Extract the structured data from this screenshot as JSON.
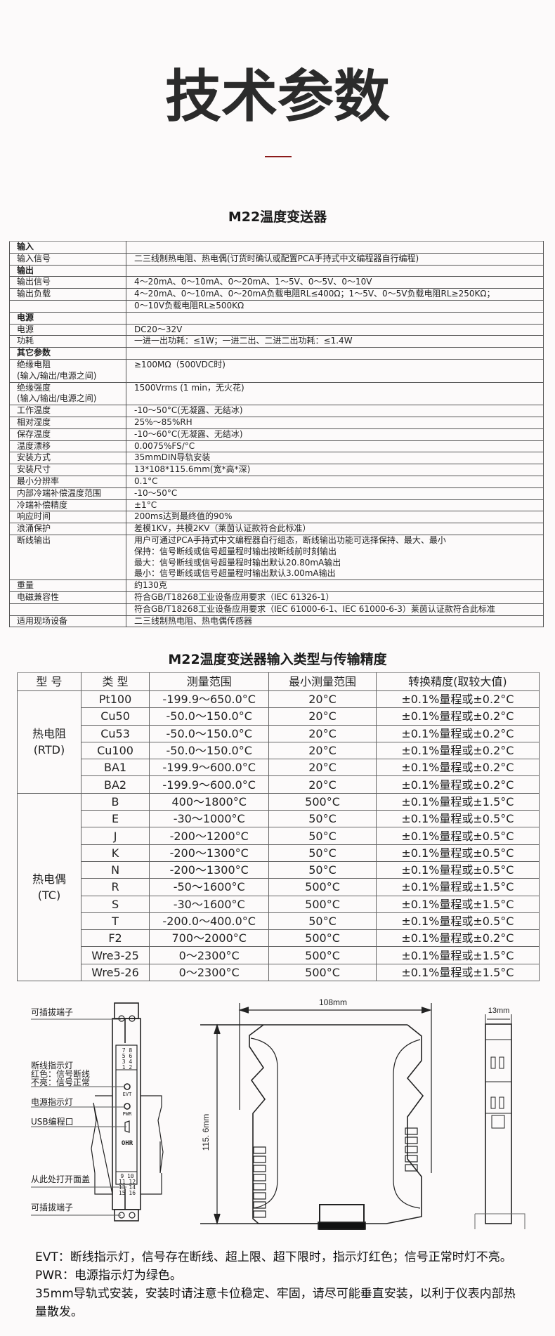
{
  "header": {
    "title": "技术参数",
    "accent_color": "#8b1a1a"
  },
  "spec": {
    "title": "M22温度变送器",
    "rows": [
      {
        "k": "输入",
        "v": [
          ""
        ],
        "section": true
      },
      {
        "k": "输入信号",
        "v": [
          "二三线制热电阻、热电偶(订货时确认或配置PCA手持式中文编程器自行编程)"
        ]
      },
      {
        "k": "输出",
        "v": [
          ""
        ],
        "section": true
      },
      {
        "k": "输出信号",
        "v": [
          "4～20mA、0～10mA、0～20mA、1～5V、0～5V、0～10V"
        ]
      },
      {
        "k": "输出负载",
        "v": [
          "4～20mA、0～10mA、0～20mA负载电阻RL≤400Ω；1～5V、0～5V负载电阻RL≥250KΩ；"
        ]
      },
      {
        "k": "",
        "v": [
          "0～10V负载电阻RL≥500KΩ"
        ]
      },
      {
        "k": "电源",
        "v": [
          ""
        ],
        "section": true
      },
      {
        "k": "电源",
        "v": [
          "DC20～32V"
        ]
      },
      {
        "k": "功耗",
        "v": [
          "一进一出功耗：≤1W；一进二出、二进二出功耗：≤1.4W"
        ]
      },
      {
        "k": "其它参数",
        "v": [
          ""
        ],
        "section": true
      },
      {
        "k": "绝缘电阻",
        "k2": "(输入/输出/电源之间)",
        "v": [
          "≥100MΩ（500VDC时)"
        ]
      },
      {
        "k": "绝缘强度",
        "k2": "(输入/输出/电源之间)",
        "v": [
          "1500Vrms (1 min，无火花)"
        ]
      },
      {
        "k": "工作温度",
        "v": [
          "-10～50°C(无凝露、无结冰)"
        ]
      },
      {
        "k": "相对湿度",
        "v": [
          "25%～85%RH"
        ]
      },
      {
        "k": "保存温度",
        "v": [
          "-10～60°C(无凝露、无结冰)"
        ]
      },
      {
        "k": "温度漂移",
        "v": [
          "0.0075%FS/°C"
        ]
      },
      {
        "k": "安装方式",
        "v": [
          "35mmDIN导轨安装"
        ]
      },
      {
        "k": "安装尺寸",
        "v": [
          "13*108*115.6mm(宽*高*深)"
        ]
      },
      {
        "k": "最小分辨率",
        "v": [
          "0.1°C"
        ]
      },
      {
        "k": "内部冷端补偿温度范围",
        "v": [
          "-10～50°C"
        ]
      },
      {
        "k": "冷端补偿精度",
        "v": [
          "±1°C"
        ]
      },
      {
        "k": "响应时间",
        "v": [
          "200ms达到最终值的90%"
        ]
      },
      {
        "k": "浪涌保护",
        "v": [
          "差模1KV，共模2KV（莱茵认证款符合此标准）"
        ]
      },
      {
        "k": "断线输出",
        "v": [
          "用户可通过PCA手持式中文编程器自行组态，断线输出功能可选择保持、最大、最小",
          "保持：信号断线或信号超量程时输出按断线前时刻输出",
          "最大：信号断线或信号超量程时输出默认20.80mA输出",
          "最小：信号断线或信号超量程时输出默认3.00mA输出"
        ]
      },
      {
        "k": "重量",
        "v": [
          "约130克"
        ]
      },
      {
        "k": "电磁兼容性",
        "v": [
          "符合GB/T18268工业设备应用要求（IEC 61326-1）"
        ]
      },
      {
        "k": "",
        "v": [
          "符合GB/T18268工业设备应用要求（IEC 61000-6-1、IEC 61000-6-3）莱茵认证款符合此标准"
        ]
      },
      {
        "k": "适用现场设备",
        "v": [
          "二三线制热电阻、热电偶传感器"
        ]
      }
    ]
  },
  "range_table": {
    "title": "M22温度变送器输入类型与传输精度",
    "headers": [
      "型 号",
      "类 型",
      "测量范围",
      "最小测量范围",
      "转换精度(取较大值)"
    ],
    "groups": [
      {
        "name": "热电阻",
        "sub": "(RTD)",
        "rows": [
          [
            "Pt100",
            "-199.9～650.0°C",
            "20°C",
            "±0.1%量程或±0.2°C"
          ],
          [
            "Cu50",
            "-50.0～150.0°C",
            "20°C",
            "±0.1%量程或±0.2°C"
          ],
          [
            "Cu53",
            "-50.0～150.0°C",
            "20°C",
            "±0.1%量程或±0.2°C"
          ],
          [
            "Cu100",
            "-50.0～150.0°C",
            "20°C",
            "±0.1%量程或±0.2°C"
          ],
          [
            "BA1",
            "-199.9～600.0°C",
            "20°C",
            "±0.1%量程或±0.2°C"
          ],
          [
            "BA2",
            "-199.9～600.0°C",
            "20°C",
            "±0.1%量程或±0.2°C"
          ]
        ]
      },
      {
        "name": "热电偶",
        "sub": "(TC)",
        "rows": [
          [
            "B",
            "400～1800°C",
            "500°C",
            "±0.1%量程或±1.5°C"
          ],
          [
            "E",
            "-30～1000°C",
            "50°C",
            "±0.1%量程或±0.5°C"
          ],
          [
            "J",
            "-200～1200°C",
            "50°C",
            "±0.1%量程或±0.5°C"
          ],
          [
            "K",
            "-200～1300°C",
            "50°C",
            "±0.1%量程或±0.5°C"
          ],
          [
            "N",
            "-200～1300°C",
            "50°C",
            "±0.1%量程或±0.5°C"
          ],
          [
            "R",
            "-50～1600°C",
            "500°C",
            "±0.1%量程或±1.5°C"
          ],
          [
            "S",
            "-30～1600°C",
            "500°C",
            "±0.1%量程或±1.5°C"
          ],
          [
            "T",
            "-200.0～400.0°C",
            "50°C",
            "±0.1%量程或±0.5°C"
          ],
          [
            "F2",
            "700～2000°C",
            "500°C",
            "±0.1%量程或±0.2°C"
          ],
          [
            "Wre3-25",
            "0～2300°C",
            "500°C",
            "±0.1%量程或±1.5°C"
          ],
          [
            "Wre5-26",
            "0～2300°C",
            "500°C",
            "±0.1%量程或±1.5°C"
          ]
        ]
      }
    ]
  },
  "diagram": {
    "labels": {
      "terminal_top": "可插拔端子",
      "evt_1": "断线指示灯",
      "evt_2": "红色：信号断线",
      "evt_3": "不亮：信号正常",
      "pwr": "电源指示灯",
      "usb": "USB编程口",
      "cover": "从此处打开面盖",
      "terminal_bottom": "可插拔端子"
    },
    "device": {
      "pins_top": [
        "7 8",
        "5 6",
        "3 4",
        "1 2"
      ],
      "pins_bottom": [
        "9 10",
        "11 12",
        "13 14",
        "15 16"
      ],
      "evt": "EVT",
      "pwr": "PWR",
      "brand": "OHR"
    },
    "dims": {
      "width": "108mm",
      "height": "115. 6mm",
      "depth": "13mm"
    }
  },
  "notes": [
    "EVT：断线指示灯，信号存在断线、超上限、超下限时，指示灯红色；信号正常时灯不亮。",
    "PWR：电源指示灯为绿色。",
    "35mm导轨式安装，安装时请注意卡位稳定、牢固，请尽可能垂直安装，以利于仪表内部热",
    "量散发。"
  ]
}
